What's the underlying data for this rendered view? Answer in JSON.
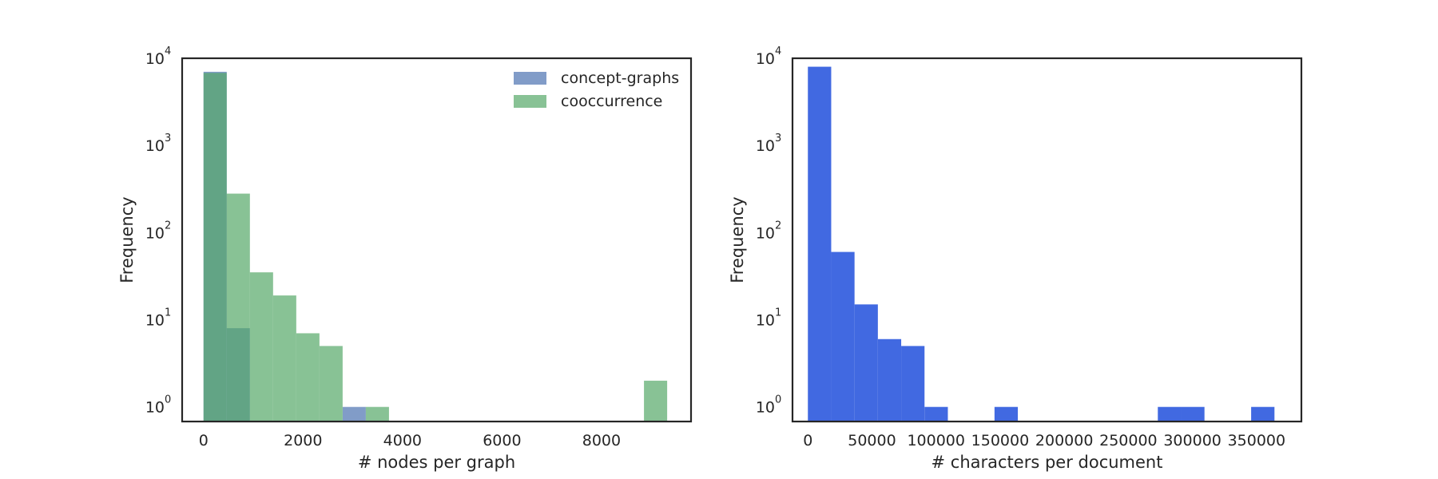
{
  "chart_data": [
    {
      "type": "bar",
      "subtype": "histogram",
      "xlabel": "# nodes per graph",
      "ylabel": "Frequency",
      "yscale": "log",
      "ylim": [
        0.68,
        10000
      ],
      "xlim": [
        -430,
        9800
      ],
      "x_ticks": [
        0,
        2000,
        4000,
        6000,
        8000
      ],
      "x_tick_labels": [
        "0",
        "2000",
        "4000",
        "6000",
        "8000"
      ],
      "y_ticks": [
        1,
        10,
        100,
        1000,
        10000
      ],
      "y_tick_labels": [
        {
          "base": "10",
          "exp": "0"
        },
        {
          "base": "10",
          "exp": "1"
        },
        {
          "base": "10",
          "exp": "2"
        },
        {
          "base": "10",
          "exp": "3"
        },
        {
          "base": "10",
          "exp": "4"
        }
      ],
      "grid": false,
      "legend_position": "top-right",
      "series": [
        {
          "name": "concept-graphs",
          "color": "#4c72b0",
          "opacity": 0.7,
          "bins": [
            {
              "x0": 0,
              "x1": 466,
              "count": 7000
            },
            {
              "x0": 466,
              "x1": 932,
              "count": 8
            },
            {
              "x0": 2796,
              "x1": 3262,
              "count": 1
            }
          ]
        },
        {
          "name": "cooccurrence",
          "color": "#55a868",
          "opacity": 0.7,
          "bins": [
            {
              "x0": 0,
              "x1": 466,
              "count": 6800
            },
            {
              "x0": 466,
              "x1": 932,
              "count": 280
            },
            {
              "x0": 932,
              "x1": 1398,
              "count": 35
            },
            {
              "x0": 1398,
              "x1": 1864,
              "count": 19
            },
            {
              "x0": 1864,
              "x1": 2330,
              "count": 7
            },
            {
              "x0": 2330,
              "x1": 2796,
              "count": 5
            },
            {
              "x0": 3262,
              "x1": 3728,
              "count": 1
            },
            {
              "x0": 8854,
              "x1": 9320,
              "count": 2
            }
          ]
        }
      ]
    },
    {
      "type": "bar",
      "subtype": "histogram",
      "xlabel": "# characters per document",
      "ylabel": "Frequency",
      "yscale": "log",
      "ylim": [
        0.68,
        10000
      ],
      "xlim": [
        -12000,
        385000
      ],
      "x_ticks": [
        0,
        50000,
        100000,
        150000,
        200000,
        250000,
        300000,
        350000
      ],
      "x_tick_labels": [
        "0",
        "50000",
        "100000",
        "150000",
        "200000",
        "250000",
        "300000",
        "350000"
      ],
      "y_ticks": [
        1,
        10,
        100,
        1000,
        10000
      ],
      "y_tick_labels": [
        {
          "base": "10",
          "exp": "0"
        },
        {
          "base": "10",
          "exp": "1"
        },
        {
          "base": "10",
          "exp": "2"
        },
        {
          "base": "10",
          "exp": "3"
        },
        {
          "base": "10",
          "exp": "4"
        }
      ],
      "grid": false,
      "series": [
        {
          "color": "#4169e1",
          "opacity": 1.0,
          "bins": [
            {
              "x0": 0,
              "x1": 18200,
              "count": 8000
            },
            {
              "x0": 18200,
              "x1": 36400,
              "count": 60
            },
            {
              "x0": 36400,
              "x1": 54600,
              "count": 15
            },
            {
              "x0": 54600,
              "x1": 72800,
              "count": 6
            },
            {
              "x0": 72800,
              "x1": 91000,
              "count": 5
            },
            {
              "x0": 91000,
              "x1": 109200,
              "count": 1
            },
            {
              "x0": 145600,
              "x1": 163800,
              "count": 1
            },
            {
              "x0": 273000,
              "x1": 291200,
              "count": 1
            },
            {
              "x0": 291200,
              "x1": 309400,
              "count": 1
            },
            {
              "x0": 345800,
              "x1": 364000,
              "count": 1
            }
          ]
        }
      ]
    }
  ]
}
